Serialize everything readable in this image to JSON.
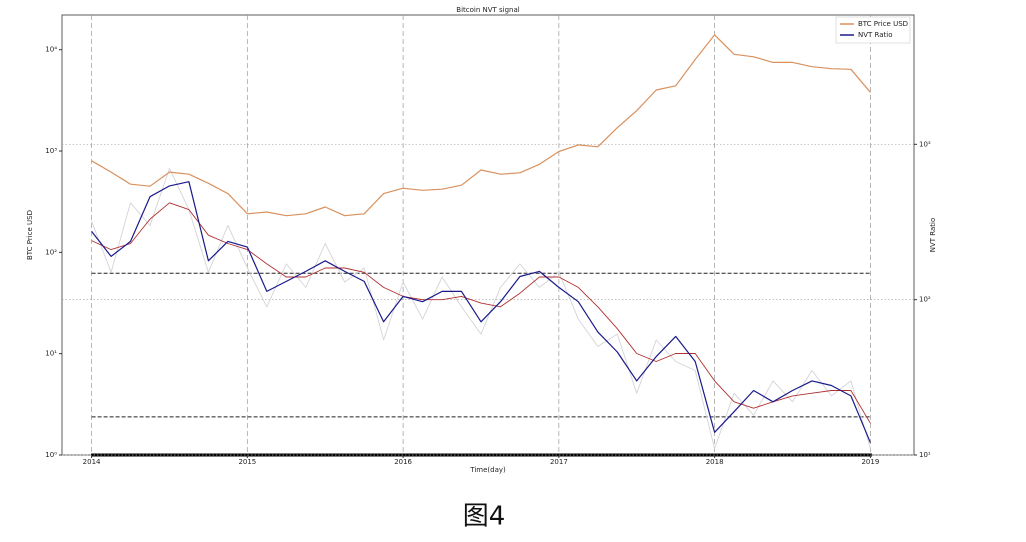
{
  "chart_data": {
    "type": "line",
    "title": "Bitcoin NVT signal",
    "xlabel": "Time(day)",
    "ylabel": "BTC Price USD",
    "y2label": "NVT Ratio",
    "caption": "图4",
    "x": [
      2014.0,
      2014.125,
      2014.25,
      2014.375,
      2014.5,
      2014.625,
      2014.75,
      2014.875,
      2015.0,
      2015.125,
      2015.25,
      2015.375,
      2015.5,
      2015.625,
      2015.75,
      2015.875,
      2016.0,
      2016.125,
      2016.25,
      2016.375,
      2016.5,
      2016.625,
      2016.75,
      2016.875,
      2017.0,
      2017.125,
      2017.25,
      2017.375,
      2017.5,
      2017.625,
      2017.75,
      2017.875,
      2018.0,
      2018.125,
      2018.25,
      2018.375,
      2018.5,
      2018.625,
      2018.75,
      2018.875,
      2019.0
    ],
    "series": [
      {
        "color": "#d4d4d8",
        "axis": "y2",
        "values": [
          320,
          150,
          420,
          300,
          700,
          380,
          150,
          300,
          160,
          90,
          170,
          120,
          230,
          130,
          160,
          55,
          130,
          75,
          140,
          90,
          60,
          120,
          170,
          120,
          150,
          75,
          50,
          60,
          25,
          55,
          40,
          35,
          11,
          25,
          18,
          30,
          22,
          35,
          24,
          30,
          11
        ]
      },
      {
        "name": "BTC Price USD",
        "color": "#d9915e",
        "values": [
          800,
          620,
          470,
          450,
          620,
          590,
          480,
          380,
          240,
          250,
          230,
          240,
          280,
          230,
          240,
          380,
          430,
          410,
          420,
          460,
          650,
          590,
          610,
          740,
          990,
          1150,
          1100,
          1700,
          2500,
          4000,
          4400,
          8000,
          14000,
          9000,
          8500,
          7500,
          7500,
          6800,
          6500,
          6400,
          3800
        ]
      },
      {
        "color": "#b03030",
        "axis": "y2",
        "values": [
          240,
          210,
          230,
          330,
          420,
          380,
          260,
          230,
          210,
          170,
          140,
          140,
          160,
          160,
          150,
          120,
          105,
          100,
          100,
          105,
          95,
          90,
          110,
          140,
          140,
          120,
          90,
          65,
          45,
          40,
          45,
          45,
          30,
          22,
          20,
          22,
          24,
          25,
          26,
          26,
          16
        ]
      },
      {
        "name": "NVT Ratio",
        "color": "#1a1a8c",
        "axis": "y2",
        "values": [
          275,
          190,
          237,
          460,
          540,
          575,
          178,
          237,
          218,
          113,
          131,
          152,
          178,
          152,
          131,
          72,
          105,
          97,
          113,
          113,
          72,
          97,
          141,
          152,
          120,
          97,
          62,
          46,
          30,
          43,
          58,
          40,
          14,
          19,
          26,
          22,
          26,
          30,
          28,
          24,
          12
        ]
      }
    ],
    "hlines": {
      "axis": "y2",
      "values": [
        148,
        17.6
      ]
    },
    "xlim": [
      2013.81,
      2019.28
    ],
    "xticks": [
      2014,
      2015,
      2016,
      2017,
      2018,
      2019
    ],
    "ylim": [
      1,
      22000
    ],
    "log_y": true,
    "yticks": [
      {
        "value": 1,
        "label": "10⁰"
      },
      {
        "value": 10,
        "label": "10¹"
      },
      {
        "value": 100,
        "label": "10²"
      },
      {
        "value": 1000,
        "label": "10³"
      },
      {
        "value": 10000,
        "label": "10⁴"
      }
    ],
    "y2lim": [
      10,
      6800
    ],
    "log_y2": true,
    "y2ticks": [
      {
        "value": 10,
        "label": "10¹"
      },
      {
        "value": 100,
        "label": "10²"
      },
      {
        "value": 1000,
        "label": "10³"
      }
    ],
    "grid": true,
    "legend": "upper right"
  }
}
